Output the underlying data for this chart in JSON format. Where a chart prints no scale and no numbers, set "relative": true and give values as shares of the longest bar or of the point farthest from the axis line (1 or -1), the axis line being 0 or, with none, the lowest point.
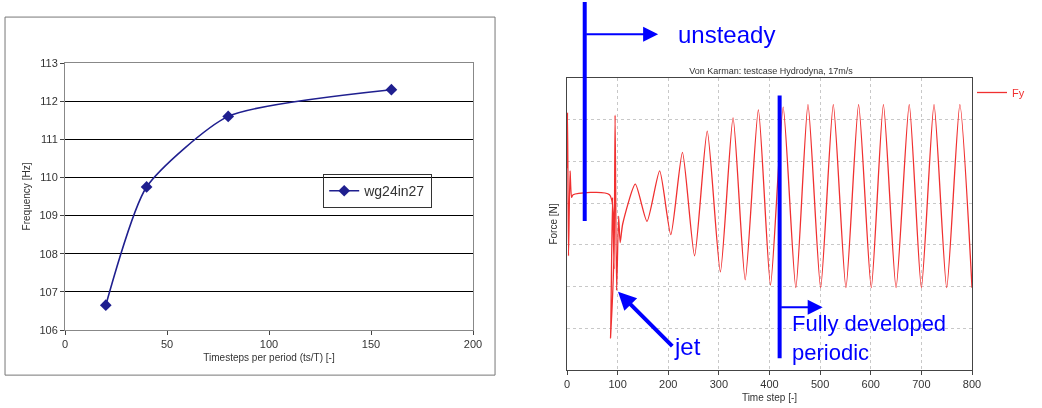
{
  "chart_data": [
    {
      "type": "line",
      "xlabel": "Timesteps per period (ts/T) [-]",
      "ylabel": "Frequency [Hz]",
      "x": [
        20,
        40,
        80,
        160
      ],
      "series": [
        {
          "name": "wg24in27",
          "color": "#1f1f8f",
          "values": [
            106.65,
            109.75,
            111.6,
            112.3
          ]
        }
      ],
      "xlim": [
        0,
        200
      ],
      "xticks": [
        0,
        50,
        100,
        150,
        200
      ],
      "ylim": [
        106,
        113
      ],
      "yticks": [
        106,
        107,
        108,
        109,
        110,
        111,
        112,
        113
      ],
      "grid": "y",
      "legend": "right",
      "marker": "diamond",
      "line_style": "solid"
    },
    {
      "type": "line",
      "title": "Von Karman: testcase Hydrodyna, 17m/s",
      "xlabel": "Time step [-]",
      "ylabel": "Force [N]",
      "relative": true,
      "x": [
        0,
        1,
        3,
        6,
        9,
        12,
        84,
        86,
        90,
        93,
        95,
        98,
        102,
        105,
        110,
        135,
        158,
        183,
        205,
        228,
        252,
        277,
        303,
        328,
        352,
        378,
        402,
        427,
        452,
        476,
        501,
        526,
        551,
        576,
        601,
        625,
        650,
        676,
        700,
        725,
        750,
        776,
        800
      ],
      "series": [
        {
          "name": "Fy",
          "color": "#f03030",
          "values": [
            0.76,
            0.97,
            0.43,
            0.75,
            0.65,
            0.66,
            0.66,
            0.12,
            0.65,
            0.38,
            0.96,
            0.3,
            0.58,
            0.48,
            0.55,
            0.7,
            0.56,
            0.75,
            0.51,
            0.82,
            0.43,
            0.9,
            0.37,
            0.95,
            0.34,
            0.98,
            0.32,
            0.99,
            0.31,
            1,
            0.31,
            1,
            0.31,
            1,
            0.31,
            1,
            0.31,
            1,
            0.31,
            1,
            0.31,
            1,
            0.31
          ]
        }
      ],
      "xlim": [
        0,
        800
      ],
      "xticks": [
        0,
        100,
        200,
        300,
        400,
        500,
        600,
        700,
        800
      ],
      "grid": true,
      "legend": "top right",
      "tick_labels": "x",
      "marker": "none",
      "line_style": "solid",
      "ref_lines": [
        {
          "axis": "x",
          "value": 35,
          "label": "unsteady",
          "color": "#0000ff"
        },
        {
          "axis": "x",
          "value": 420,
          "label": "Fully developed\nperiodic",
          "color": "#0000ff"
        }
      ],
      "annotations": [
        {
          "text": "jet",
          "x": 98,
          "y": 0.3
        }
      ]
    }
  ]
}
